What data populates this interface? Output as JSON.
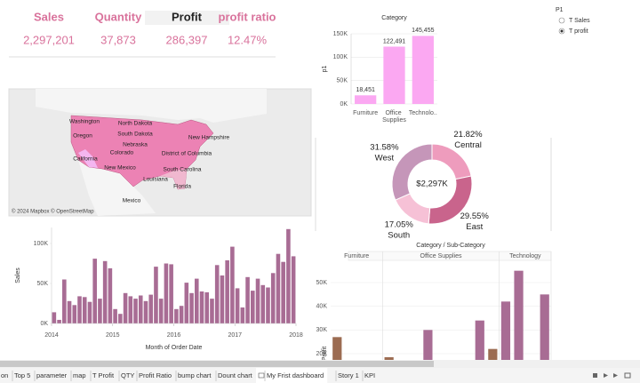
{
  "kpis": [
    {
      "label": "Sales",
      "value": "2,297,201"
    },
    {
      "label": "Quantity",
      "value": "37,873"
    },
    {
      "label": "Profit",
      "value": "286,397"
    },
    {
      "label": "profit ratio",
      "value": "12.47%"
    }
  ],
  "map": {
    "labels": [
      "Washington",
      "North Dakota",
      "Oregon",
      "South Dakota",
      "Nebraska",
      "New Hampshire",
      "California",
      "Colorado",
      "District of Columbia",
      "New Mexico",
      "South Carolina",
      "Louisiana",
      "Florida",
      "Mexico"
    ],
    "credit": "© 2024 Mapbox © OpenStreetMap"
  },
  "parameter": {
    "title": "P1",
    "options": [
      "T Sales",
      "T profit"
    ],
    "selected": 1
  },
  "chart_data": [
    {
      "type": "bar",
      "title": "Category",
      "y_label": "p1",
      "categories": [
        "Furniture",
        "Office Supplies",
        "Technolo.."
      ],
      "values": [
        18451,
        122491,
        145455
      ],
      "value_labels": [
        "18,451",
        "122,491",
        "145,455"
      ],
      "color": "#fba8f2",
      "ylim": [
        0,
        150000
      ],
      "yticks": [
        {
          "value": 0,
          "label": "0K"
        },
        {
          "value": 50000,
          "label": "50K"
        },
        {
          "value": 100000,
          "label": "100K"
        },
        {
          "value": 150000,
          "label": "150K"
        }
      ],
      "grid": true
    },
    {
      "type": "pie",
      "center_label": "$2,297K",
      "categories": [
        "Central",
        "East",
        "South",
        "West"
      ],
      "values": [
        21.82,
        29.55,
        17.05,
        31.58
      ],
      "value_labels": [
        "21.82%",
        "29.55%",
        "17.05%",
        "31.58%"
      ],
      "colors": [
        "#ee9cbd",
        "#c9648c",
        "#f6c1d6",
        "#c596b9"
      ]
    },
    {
      "type": "bar",
      "y_label": "Sales",
      "x_label": "Month of Order Date",
      "categories": [
        null,
        null,
        null,
        null,
        null,
        null,
        null,
        null,
        null,
        null,
        null,
        null,
        null,
        null,
        null,
        null,
        null,
        null,
        null,
        null,
        null,
        null,
        null,
        null,
        null,
        null,
        null,
        null,
        null,
        null,
        null,
        null,
        null,
        null,
        null,
        null,
        null,
        null,
        null,
        null,
        null,
        null,
        null,
        null,
        null,
        null,
        null,
        null
      ],
      "values": [
        14000,
        4500,
        55000,
        28000,
        23000,
        34000,
        33000,
        27000,
        81000,
        31000,
        78000,
        69000,
        18000,
        12000,
        38000,
        34000,
        31000,
        35000,
        28000,
        36000,
        71000,
        31000,
        75000,
        74000,
        18000,
        22000,
        51000,
        38000,
        56000,
        40000,
        39000,
        31000,
        73000,
        60000,
        79000,
        96000,
        44000,
        20000,
        58000,
        41000,
        56000,
        48000,
        45000,
        63000,
        87000,
        77000,
        118000,
        84000
      ],
      "color": "#a86c94",
      "ylim": [
        0,
        120000
      ],
      "yticks": [
        {
          "value": 0,
          "label": "0K"
        },
        {
          "value": 50000,
          "label": "50K"
        },
        {
          "value": 100000,
          "label": "100K"
        }
      ],
      "xticks": [
        2014,
        2015,
        2016,
        2017,
        2018
      ],
      "grid": false
    },
    {
      "type": "grouped-bar",
      "title": "Category / Sub-Category",
      "y_label": "Profit",
      "groups": [
        {
          "name": "Furniture",
          "categories": [
            null,
            null,
            null,
            null
          ],
          "values": [
            27000,
            null,
            null,
            null
          ],
          "colors": [
            "#9c6c52",
            null,
            null,
            null
          ]
        },
        {
          "name": "Office Supplies",
          "categories": [
            null,
            null,
            null,
            null,
            null,
            null,
            null,
            null,
            null
          ],
          "values": [
            18500,
            null,
            null,
            30000,
            null,
            null,
            null,
            34000,
            22000
          ],
          "colors": [
            "#9c6c52",
            null,
            null,
            "#a86c94",
            null,
            null,
            null,
            "#a86c94",
            "#9c6c52"
          ]
        },
        {
          "name": "Technology",
          "categories": [
            null,
            null,
            null,
            null
          ],
          "values": [
            42000,
            55000,
            null,
            45000
          ],
          "colors": [
            "#a86c94",
            "#a86c94",
            null,
            "#a86c94"
          ]
        }
      ],
      "ylim": [
        17000,
        62000
      ],
      "yticks": [
        {
          "value": 20000,
          "label": "20K"
        },
        {
          "value": 30000,
          "label": "30K"
        },
        {
          "value": 40000,
          "label": "40K"
        },
        {
          "value": 50000,
          "label": "50K"
        }
      ]
    }
  ],
  "tabs": [
    "on",
    "Top 5",
    "parameter",
    "map",
    "T Profit",
    "QTY",
    "Profit Ratio",
    "bump chart",
    "Dount chart",
    "My Frist dashboard",
    "Story 1",
    "KPI"
  ],
  "active_tab": 9
}
